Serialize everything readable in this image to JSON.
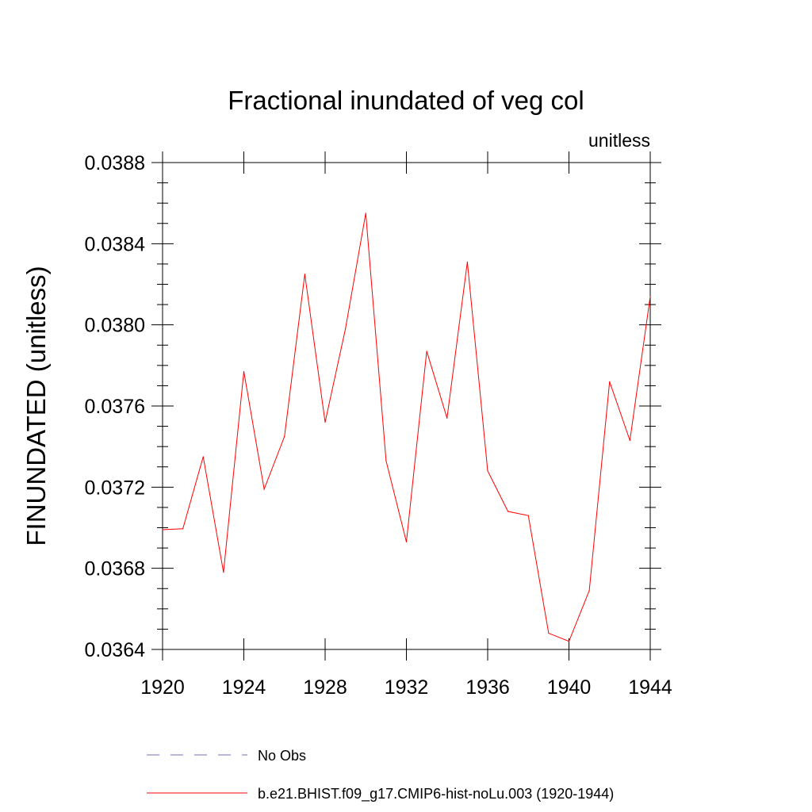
{
  "chart_data": {
    "type": "line",
    "title": "Fractional inundated of veg col",
    "units_label": "unitless",
    "xlabel": "",
    "ylabel": "FINUNDATED  (unitless)",
    "xlim": [
      1920,
      1944
    ],
    "ylim": [
      0.0364,
      0.0388
    ],
    "x_major_ticks": [
      1920,
      1924,
      1928,
      1932,
      1936,
      1940,
      1944
    ],
    "x_tick_labels": [
      "1920",
      "1924",
      "1928",
      "1932",
      "1936",
      "1940",
      "1944"
    ],
    "y_major_ticks": [
      0.0364,
      0.0368,
      0.0372,
      0.0376,
      0.038,
      0.0384,
      0.0388
    ],
    "y_tick_labels": [
      "0.0364",
      "0.0368",
      "0.0372",
      "0.0376",
      "0.0380",
      "0.0384",
      "0.0388"
    ],
    "grid": false,
    "legend_position": "bottom",
    "series": [
      {
        "name": "No Obs",
        "color": "#6f6fbf",
        "style": "dashed",
        "x": [],
        "values": []
      },
      {
        "name": "b.e21.BHIST.f09_g17.CMIP6-hist-noLu.003 (1920-1944)",
        "color": "#ff0000",
        "style": "solid",
        "x": [
          1920,
          1921,
          1922,
          1923,
          1924,
          1925,
          1926,
          1927,
          1928,
          1929,
          1930,
          1931,
          1932,
          1933,
          1934,
          1935,
          1936,
          1937,
          1938,
          1939,
          1940,
          1941,
          1942,
          1943,
          1944
        ],
        "values": [
          0.03699,
          0.036995,
          0.03735,
          0.03678,
          0.03777,
          0.03719,
          0.03745,
          0.03825,
          0.03752,
          0.03798,
          0.03855,
          0.03733,
          0.03693,
          0.03787,
          0.03754,
          0.03831,
          0.03728,
          0.03708,
          0.03706,
          0.03648,
          0.03644,
          0.03669,
          0.03772,
          0.03743,
          0.03814
        ]
      }
    ]
  }
}
